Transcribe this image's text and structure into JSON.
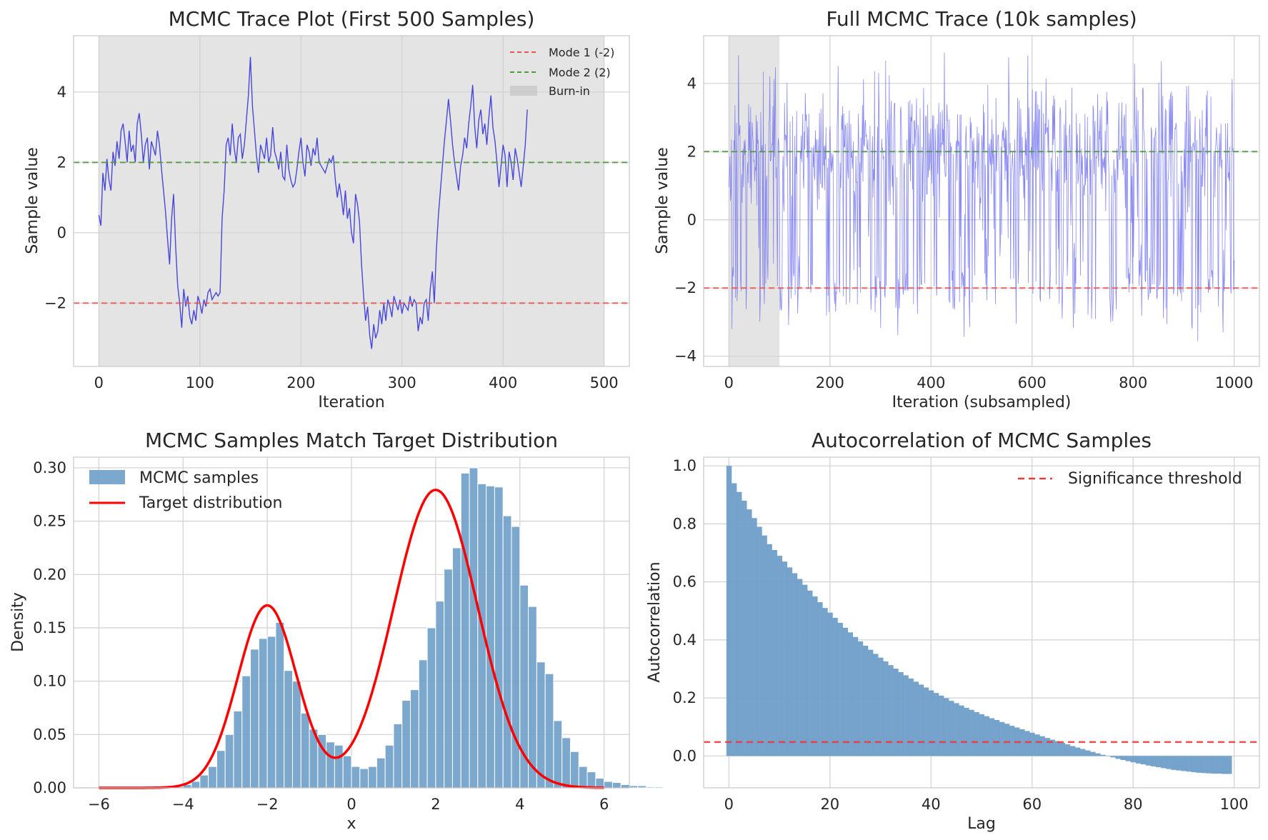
{
  "chart_data": [
    {
      "id": "trace500",
      "type": "line",
      "title": "MCMC Trace Plot (First 500 Samples)",
      "xlabel": "Iteration",
      "ylabel": "Sample value",
      "xlim": [
        -25,
        525
      ],
      "ylim": [
        -3.8,
        5.6
      ],
      "xticks": [
        0,
        100,
        200,
        300,
        400,
        500
      ],
      "yticks": [
        -2,
        0,
        2,
        4
      ],
      "grid": true,
      "legend_position": "top-right",
      "shaded_region": {
        "name": "Burn-in",
        "x": [
          0,
          500
        ]
      },
      "hlines": [
        {
          "name": "Mode 1 (-2)",
          "y": -2,
          "color": "#e8564f",
          "dash": "dashed"
        },
        {
          "name": "Mode 2 (2)",
          "y": 2,
          "color": "#4f9a3f",
          "dash": "dashed"
        }
      ],
      "series": [
        {
          "color": "#2b2bdb",
          "x_step": 2,
          "values": [
            0.5,
            0.2,
            1.7,
            1.2,
            2.1,
            1.5,
            1.2,
            2.3,
            1.9,
            2.6,
            2.1,
            2.9,
            3.1,
            2.6,
            2.0,
            2.9,
            2.3,
            2.5,
            2.0,
            3.1,
            3.4,
            2.8,
            2.0,
            2.5,
            2.7,
            1.8,
            2.6,
            2.4,
            2.2,
            2.9,
            2.5,
            1.8,
            1.2,
            0.6,
            -0.2,
            -0.9,
            0.4,
            1.1,
            -0.4,
            -1.5,
            -2.0,
            -2.7,
            -1.6,
            -2.1,
            -1.8,
            -2.4,
            -2.6,
            -2.2,
            -2.5,
            -1.8,
            -2.0,
            -2.3,
            -1.9,
            -2.1,
            -1.7,
            -1.6,
            -1.9,
            -1.8,
            -1.7,
            -1.8,
            -1.7,
            0.4,
            1.2,
            2.5,
            2.7,
            2.2,
            3.1,
            2.4,
            2.0,
            2.7,
            2.8,
            2.1,
            2.5,
            3.2,
            3.9,
            5.0,
            3.6,
            2.9,
            2.2,
            1.7,
            2.5,
            2.3,
            2.1,
            2.7,
            2.0,
            2.2,
            3.0,
            2.3,
            2.1,
            1.8,
            2.3,
            1.6,
            1.5,
            2.5,
            1.8,
            1.5,
            1.3,
            1.4,
            1.8,
            2.3,
            2.7,
            2.0,
            1.6,
            2.5,
            2.3,
            1.9,
            2.4,
            2.2,
            2.7,
            2.0,
            1.9,
            1.8,
            1.7,
            1.9,
            2.1,
            2.0,
            2.2,
            1.5,
            1.0,
            1.4,
            1.0,
            0.5,
            1.2,
            0.4,
            0.7,
            0.0,
            -0.3,
            1.1,
            0.8,
            0.3,
            -0.9,
            -1.8,
            -2.5,
            -2.1,
            -2.9,
            -3.3,
            -2.6,
            -3.0,
            -2.8,
            -2.2,
            -2.6,
            -2.0,
            -2.5,
            -1.9,
            -2.1,
            -2.4,
            -1.8,
            -2.0,
            -2.2,
            -1.9,
            -2.3,
            -2.0,
            -2.1,
            -2.2,
            -1.8,
            -2.1,
            -1.9,
            -2.0,
            -2.8,
            -2.4,
            -2.6,
            -2.0,
            -1.9,
            -2.5,
            -1.6,
            -1.1,
            -2.0,
            -0.5,
            0.5,
            1.2,
            1.9,
            2.6,
            3.2,
            3.8,
            3.2,
            2.5,
            2.0,
            1.6,
            1.2,
            1.9,
            2.2,
            2.7,
            2.4,
            3.1,
            3.6,
            4.2,
            3.0,
            2.4,
            3.2,
            3.5,
            2.8,
            3.1,
            2.5,
            3.3,
            3.9,
            3.0,
            2.6,
            2.0,
            1.3,
            1.9,
            2.5,
            2.2,
            1.3,
            2.3,
            2.0,
            1.5,
            2.4,
            2.1,
            1.7,
            1.3,
            1.9,
            2.5,
            3.5
          ]
        }
      ]
    },
    {
      "id": "trace10k",
      "type": "line",
      "title": "Full MCMC Trace (10k samples)",
      "xlabel": "Iteration (subsampled)",
      "ylabel": "Sample value",
      "xlim": [
        -50,
        1050
      ],
      "ylim": [
        -4.3,
        5.4
      ],
      "xticks": [
        0,
        200,
        400,
        600,
        800,
        1000
      ],
      "yticks": [
        -4,
        -2,
        0,
        2,
        4
      ],
      "grid": true,
      "shaded_region": {
        "x": [
          0,
          100
        ]
      },
      "hlines": [
        {
          "y": -2,
          "color": "#e8564f",
          "dash": "dashed"
        },
        {
          "y": 2,
          "color": "#4f9a3f",
          "dash": "dashed"
        }
      ],
      "series": [
        {
          "color": "#6b6bf0",
          "x": [
            0,
            1000
          ],
          "n_points": 1000,
          "modes": [
            -2,
            2
          ],
          "range": [
            -3.8,
            4.9
          ]
        }
      ]
    },
    {
      "id": "hist",
      "type": "bar",
      "title": "MCMC Samples Match Target Distribution",
      "xlabel": "x",
      "ylabel": "Density",
      "xlim": [
        -6.6,
        6.6
      ],
      "ylim": [
        0,
        0.31
      ],
      "xticks": [
        -6,
        -4,
        -2,
        0,
        2,
        4,
        6
      ],
      "yticks": [
        0.0,
        0.05,
        0.1,
        0.15,
        0.2,
        0.25,
        0.3
      ],
      "grid": true,
      "legend_position": "top-left",
      "bin_start": -4.2,
      "bin_width": 0.2,
      "series": [
        {
          "name": "MCMC samples",
          "color": "#6e9ec8",
          "values": [
            0.001,
            0.003,
            0.006,
            0.012,
            0.02,
            0.035,
            0.05,
            0.072,
            0.105,
            0.13,
            0.14,
            0.142,
            0.155,
            0.11,
            0.1,
            0.07,
            0.055,
            0.05,
            0.043,
            0.04,
            0.03,
            0.02,
            0.018,
            0.02,
            0.028,
            0.04,
            0.06,
            0.082,
            0.092,
            0.12,
            0.15,
            0.175,
            0.205,
            0.225,
            0.295,
            0.3,
            0.285,
            0.283,
            0.282,
            0.255,
            0.245,
            0.19,
            0.17,
            0.118,
            0.107,
            0.063,
            0.047,
            0.034,
            0.02,
            0.015,
            0.009,
            0.006,
            0.005,
            0.003,
            0.002,
            0.002,
            0.001,
            0.001
          ]
        },
        {
          "name": "Target distribution",
          "type": "line",
          "color": "#ff0000",
          "mixture": [
            {
              "w": 0.3,
              "mu": -2,
              "sigma": 0.7
            },
            {
              "w": 0.7,
              "mu": 2,
              "sigma": 1.0
            }
          ],
          "x": [
            -6,
            6
          ]
        }
      ]
    },
    {
      "id": "acf",
      "type": "bar",
      "title": "Autocorrelation of MCMC Samples",
      "xlabel": "Lag",
      "ylabel": "Autocorrelation",
      "xlim": [
        -5,
        105
      ],
      "ylim": [
        -0.11,
        1.03
      ],
      "xticks": [
        0,
        20,
        40,
        60,
        80,
        100
      ],
      "yticks": [
        0.0,
        0.2,
        0.4,
        0.6,
        0.8,
        1.0
      ],
      "grid": true,
      "legend_position": "top-right",
      "hlines": [
        {
          "name": "Significance threshold",
          "y": 0.048,
          "color": "#ef3a3a",
          "dash": "dashed"
        }
      ],
      "series": [
        {
          "color": "#6e9ec8",
          "lags": [
            0,
            99
          ],
          "values": [
            1.0,
            0.94,
            0.91,
            0.88,
            0.85,
            0.82,
            0.79,
            0.76,
            0.73,
            0.71,
            0.69,
            0.67,
            0.65,
            0.63,
            0.61,
            0.59,
            0.57,
            0.55,
            0.53,
            0.51,
            0.494,
            0.476,
            0.459,
            0.442,
            0.426,
            0.41,
            0.395,
            0.38,
            0.366,
            0.352,
            0.339,
            0.326,
            0.313,
            0.301,
            0.289,
            0.278,
            0.267,
            0.256,
            0.246,
            0.236,
            0.226,
            0.217,
            0.208,
            0.199,
            0.19,
            0.182,
            0.174,
            0.166,
            0.159,
            0.151,
            0.144,
            0.137,
            0.13,
            0.124,
            0.117,
            0.111,
            0.104,
            0.098,
            0.092,
            0.086,
            0.08,
            0.074,
            0.068,
            0.062,
            0.056,
            0.051,
            0.045,
            0.04,
            0.034,
            0.029,
            0.024,
            0.019,
            0.014,
            0.009,
            0.004,
            -0.001,
            -0.005,
            -0.01,
            -0.014,
            -0.018,
            -0.022,
            -0.026,
            -0.029,
            -0.033,
            -0.036,
            -0.039,
            -0.042,
            -0.045,
            -0.048,
            -0.05,
            -0.052,
            -0.054,
            -0.056,
            -0.058,
            -0.059,
            -0.06,
            -0.061,
            -0.061,
            -0.062,
            -0.062
          ]
        }
      ]
    }
  ]
}
